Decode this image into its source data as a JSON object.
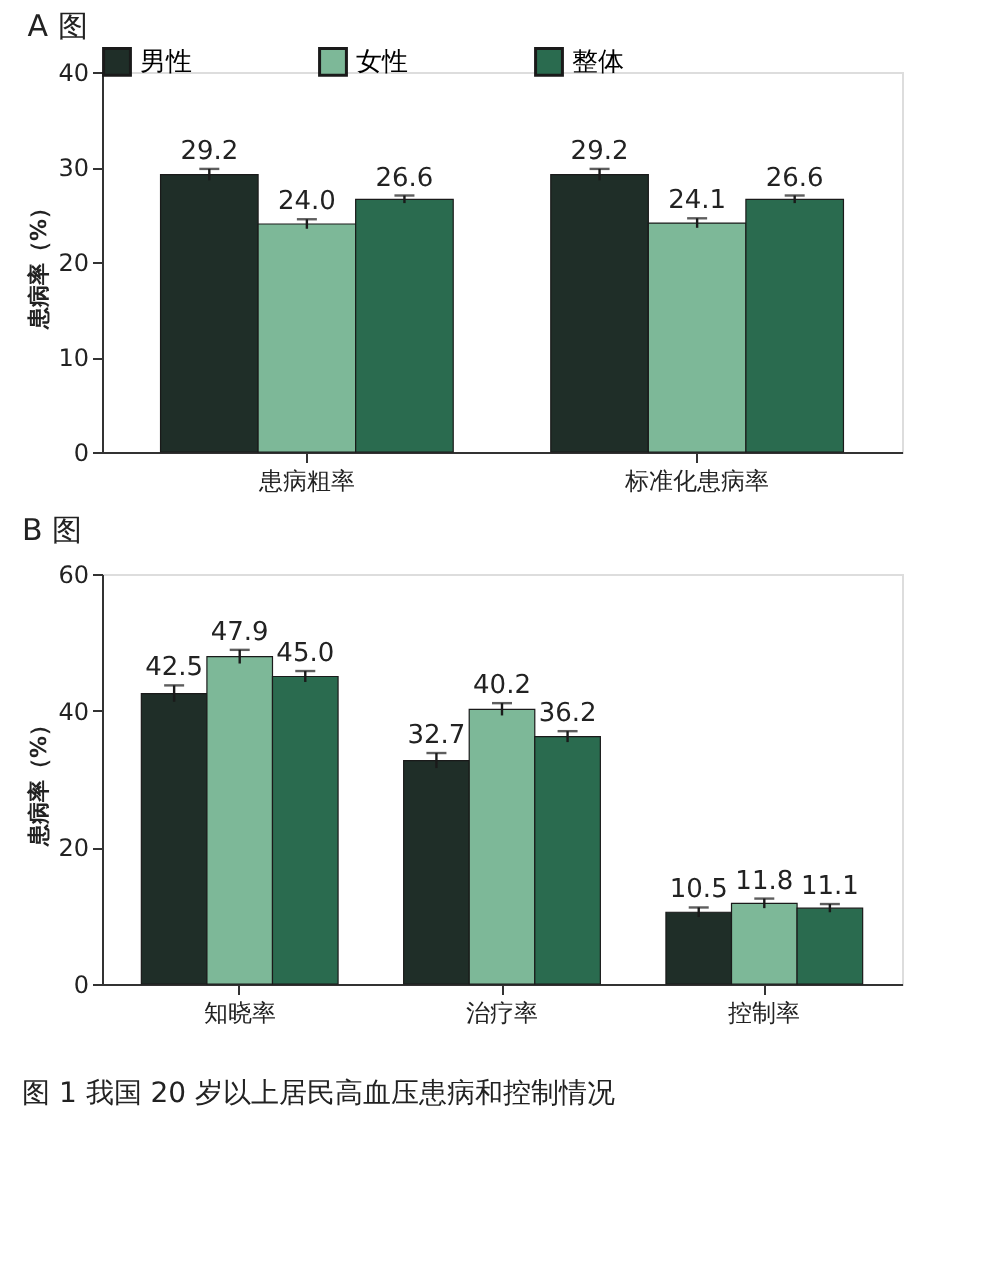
{
  "chart_data": [
    {
      "type": "bar",
      "title": "A 图",
      "ylabel": "患病率（%）",
      "categories": [
        "患病粗率",
        "标准化患病率"
      ],
      "series": [
        {
          "name": "男性",
          "color": "#1f2e28",
          "values": [
            29.2,
            29.2
          ],
          "errors": [
            0.6,
            0.6
          ],
          "value_labels": [
            "29.2",
            "29.2"
          ]
        },
        {
          "name": "女性",
          "color": "#7db898",
          "values": [
            24.0,
            24.1
          ],
          "errors": [
            0.5,
            0.5
          ],
          "value_labels": [
            "24.0",
            "24.1"
          ]
        },
        {
          "name": "整体",
          "color": "#2a6b4f",
          "values": [
            26.6,
            26.6
          ],
          "errors": [
            0.4,
            0.4
          ],
          "value_labels": [
            "26.6",
            "26.6"
          ]
        }
      ],
      "ylim": [
        0,
        40
      ],
      "yticks": [
        0,
        10,
        20,
        30,
        40
      ],
      "legend": "top",
      "grid": false
    },
    {
      "type": "bar",
      "title": "B 图",
      "ylabel": "患病率（%）",
      "categories": [
        "知晓率",
        "治疗率",
        "控制率"
      ],
      "series": [
        {
          "color": "#1f2e28",
          "values": [
            42.5,
            32.7,
            10.5
          ],
          "errors": [
            1.2,
            1.1,
            0.7
          ],
          "value_labels": [
            "42.5",
            "32.7",
            "10.5"
          ]
        },
        {
          "color": "#7db898",
          "values": [
            47.9,
            40.2,
            11.8
          ],
          "errors": [
            1.0,
            0.9,
            0.7
          ],
          "value_labels": [
            "47.9",
            "40.2",
            "11.8"
          ]
        },
        {
          "color": "#2a6b4f",
          "values": [
            45.0,
            36.2,
            11.1
          ],
          "errors": [
            0.8,
            0.8,
            0.6
          ],
          "value_labels": [
            "45.0",
            "36.2",
            "11.1"
          ]
        }
      ],
      "ylim": [
        0,
        60
      ],
      "yticks": [
        0,
        20,
        40,
        60
      ],
      "legend": false,
      "grid": false,
      "annotations": [
        "图 1 我国 20 岁以上居民高血压患病和控制情况"
      ]
    }
  ]
}
